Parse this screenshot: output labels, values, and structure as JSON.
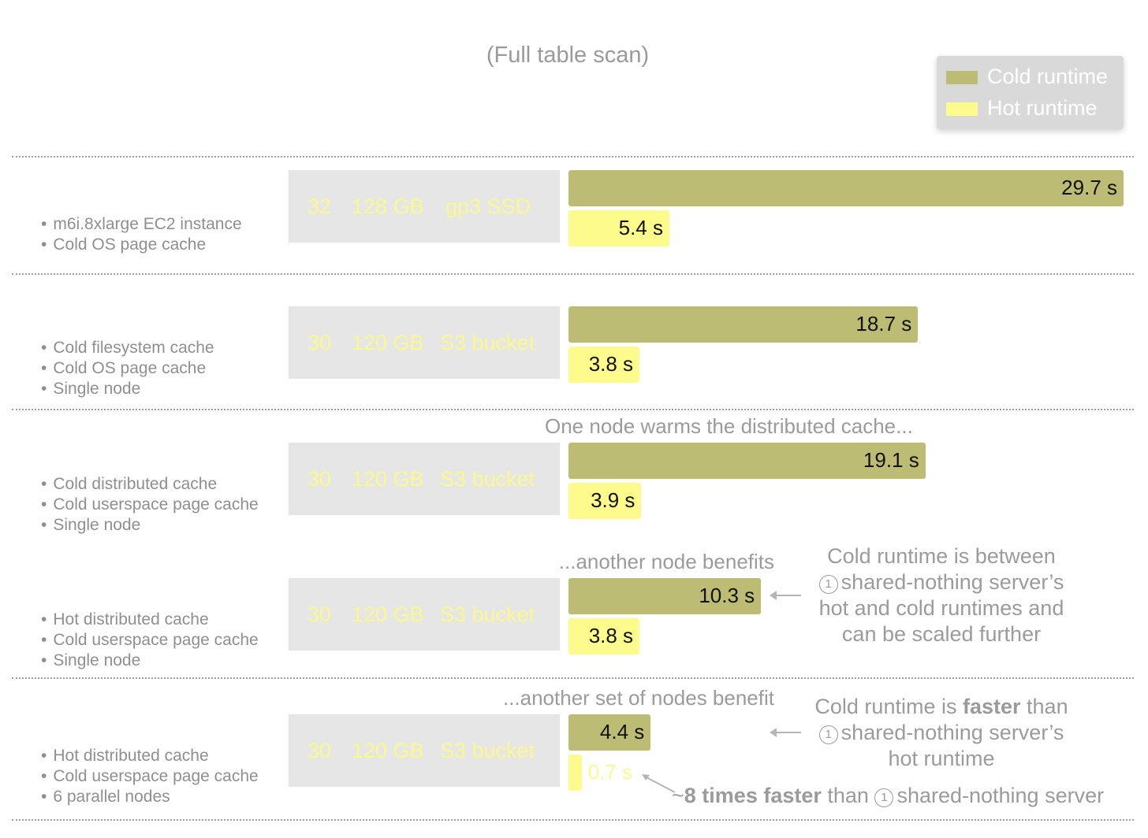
{
  "chart_data": {
    "type": "bar",
    "orientation": "horizontal",
    "title": "",
    "subtitle": "(Full table scan)",
    "legend_position": "top-right",
    "legend": [
      {
        "label": "Cold runtime",
        "color": "#bdbc74"
      },
      {
        "label": "Hot runtime",
        "color": "#fdfb8b"
      }
    ],
    "column_header": "",
    "unit": "s",
    "xlim": [
      0,
      30
    ],
    "categories": [
      {
        "title": "",
        "bullets": [
          "m6i.8xlarge EC2 instance",
          "Cold OS page cache"
        ],
        "spec": {
          "cpu": "32",
          "memory": "128 GB",
          "storage": "gp3 SSD"
        },
        "cold": 29.7,
        "hot": 5.4,
        "cold_label": "29.7 s",
        "hot_label": "5.4 s"
      },
      {
        "title": "",
        "bullets": [
          "Cold filesystem cache",
          "Cold OS page cache",
          "Single node"
        ],
        "spec": {
          "cpu": "30",
          "memory": "120 GB",
          "storage": "S3 bucket"
        },
        "cold": 18.7,
        "hot": 3.8,
        "cold_label": "18.7 s",
        "hot_label": "3.8 s"
      },
      {
        "title": "",
        "bullets": [
          "Cold distributed cache",
          "Cold userspace page cache",
          "Single node"
        ],
        "spec": {
          "cpu": "30",
          "memory": "120 GB",
          "storage": "S3 bucket"
        },
        "cold": 19.1,
        "hot": 3.9,
        "cold_label": "19.1 s",
        "hot_label": "3.9 s",
        "note": "One node warms the distributed cache..."
      },
      {
        "title": "",
        "bullets": [
          "Hot distributed cache",
          "Cold userspace page cache",
          "Single node"
        ],
        "spec": {
          "cpu": "30",
          "memory": "120 GB",
          "storage": "S3 bucket"
        },
        "cold": 10.3,
        "hot": 3.8,
        "cold_label": "10.3 s",
        "hot_label": "3.8 s",
        "note": "...another node benefits"
      },
      {
        "title": "",
        "bullets": [
          "Hot distributed cache",
          "Cold userspace page cache",
          "6 parallel nodes"
        ],
        "spec": {
          "cpu": "30",
          "memory": "120 GB",
          "storage": "S3 bucket"
        },
        "cold": 4.4,
        "hot": 0.7,
        "cold_label": "4.4 s",
        "hot_label": "0.7 s",
        "note": "...another set of nodes benefit"
      }
    ],
    "annotations": {
      "callout_1": {
        "circled_number": "1",
        "line1": "Cold runtime is between",
        "line2": "shared-nothing server’s",
        "line3": "hot and cold runtimes and",
        "line4": "can be scaled further"
      },
      "callout_2": {
        "circled_number": "1",
        "line1_a": "Cold runtime is ",
        "line1_b": "faster",
        "line1_c": " than",
        "line2": "shared-nothing server’s",
        "line3": "hot runtime"
      },
      "callout_3": {
        "circled_number": "1",
        "prefix": "~",
        "bold": "8 times faster",
        "middle": " than ",
        "suffix": "shared-nothing server"
      }
    }
  }
}
